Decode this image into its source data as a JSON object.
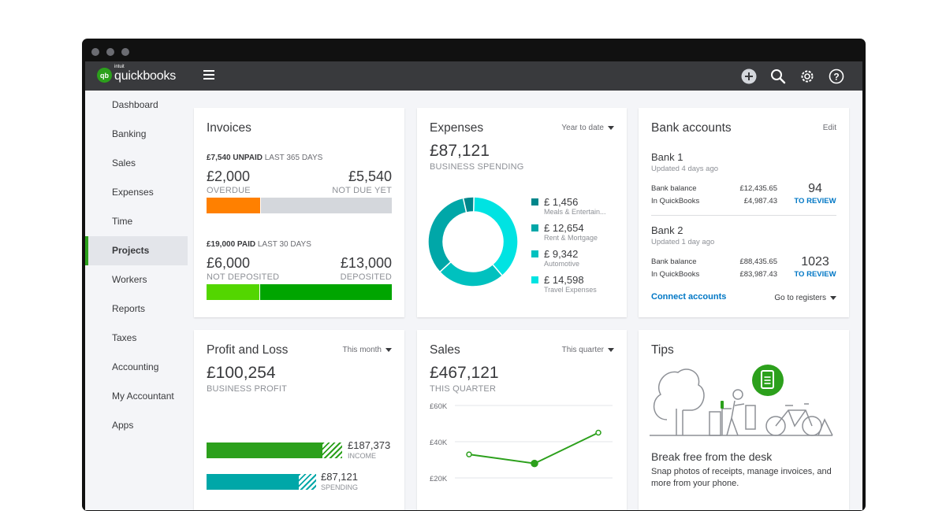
{
  "app": {
    "logo_mark": "qb",
    "logo_intuit": "intuit",
    "logo_text": "quickbooks"
  },
  "topbar": {
    "icons": [
      "plus-icon",
      "search-icon",
      "gear-icon",
      "help-icon"
    ]
  },
  "sidebar": {
    "items": [
      {
        "label": "Dashboard"
      },
      {
        "label": "Banking"
      },
      {
        "label": "Sales"
      },
      {
        "label": "Expenses"
      },
      {
        "label": "Time"
      },
      {
        "label": "Projects",
        "active": true
      },
      {
        "label": "Workers"
      },
      {
        "label": "Reports"
      },
      {
        "label": "Taxes"
      },
      {
        "label": "Accounting"
      },
      {
        "label": "My Accountant"
      },
      {
        "label": "Apps"
      }
    ]
  },
  "invoices": {
    "title": "Invoices",
    "unpaid_amount": "£7,540 UNPAID",
    "unpaid_period": "LAST 365 DAYS",
    "overdue_value": "£2,000",
    "overdue_label": "OVERDUE",
    "not_due_value": "£5,540",
    "not_due_label": "NOT DUE YET",
    "paid_amount": "£19,000 PAID",
    "paid_period": "LAST 30 DAYS",
    "not_deposited_value": "£6,000",
    "not_deposited_label": "NOT DEPOSITED",
    "deposited_value": "£13,000",
    "deposited_label": "DEPOSITED",
    "colors": {
      "overdue": "#ff8000",
      "not_due": "#d4d7dc",
      "not_deposited": "#53d600",
      "deposited": "#00a500"
    }
  },
  "expenses": {
    "title": "Expenses",
    "period": "Year to date",
    "total": "£87,121",
    "total_label": "BUSINESS SPENDING",
    "legend": [
      {
        "value": "£ 1,456",
        "label": "Meals & Entertain...",
        "color": "#00868b",
        "amount": 1456
      },
      {
        "value": "£ 12,654",
        "label": "Rent & Mortgage",
        "color": "#00a7a8",
        "amount": 12654
      },
      {
        "value": "£ 9,342",
        "label": "Automotive",
        "color": "#00c1bf",
        "amount": 9342
      },
      {
        "value": "£ 14,598",
        "label": "Travel Expenses",
        "color": "#00e3e2",
        "amount": 14598
      }
    ]
  },
  "bank": {
    "title": "Bank accounts",
    "edit": "Edit",
    "accounts": [
      {
        "name": "Bank 1",
        "updated": "Updated 4 days ago",
        "balance_label": "Bank balance",
        "balance": "£12,435.65",
        "qb_label": "In QuickBooks",
        "qb": "£4,987.43",
        "count": "94",
        "review": "TO REVIEW"
      },
      {
        "name": "Bank 2",
        "updated": "Updated 1 day ago",
        "balance_label": "Bank balance",
        "balance": "£88,435.65",
        "qb_label": "In QuickBooks",
        "qb": "£83,987.43",
        "count": "1023",
        "review": "TO REVIEW"
      }
    ],
    "connect": "Connect accounts",
    "registers": "Go to registers"
  },
  "pl": {
    "title": "Profit and Loss",
    "period": "This month",
    "total": "£100,254",
    "total_label": "BUSINESS PROFIT",
    "income_value": "£187,373",
    "income_label": "INCOME",
    "spending_value": "£87,121",
    "spending_label": "SPENDING",
    "colors": {
      "income": "#2ca01c",
      "spending": "#00a7a8"
    }
  },
  "sales": {
    "title": "Sales",
    "period": "This quarter",
    "total": "£467,121",
    "total_label": "THIS QUARTER"
  },
  "chart_data": {
    "type": "line",
    "ytick_labels": [
      "£60K",
      "£40K",
      "£20K"
    ],
    "ylim": [
      20000,
      60000
    ],
    "series": [
      {
        "values": [
          33000,
          28000,
          45000
        ]
      }
    ],
    "color": "#2ca01c"
  },
  "tips": {
    "title": "Tips",
    "headline": "Break free from the desk",
    "body": "Snap photos of receipts, manage invoices, and more from your phone."
  }
}
